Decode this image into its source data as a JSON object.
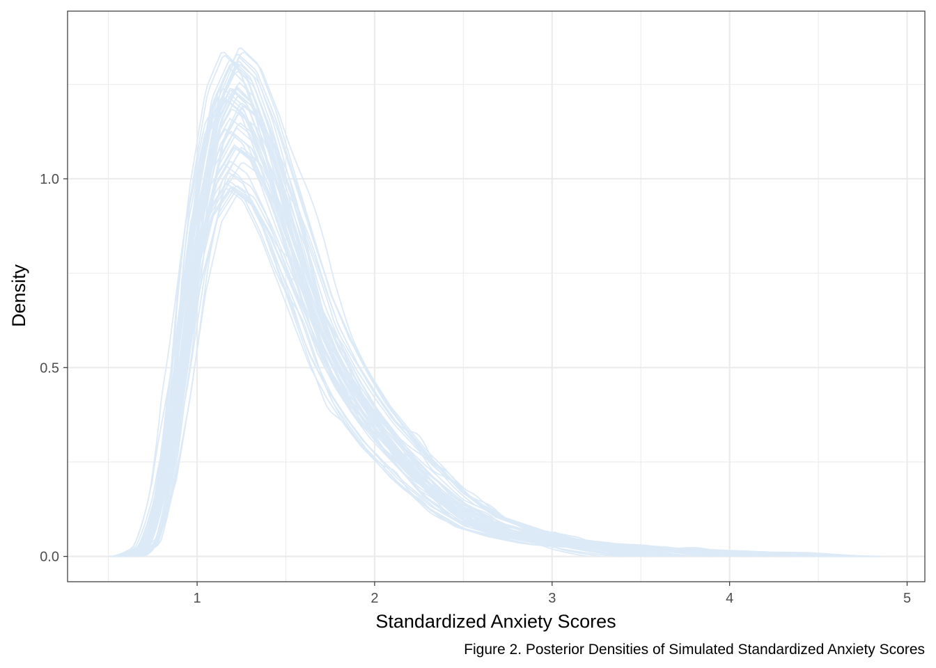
{
  "chart_data": {
    "type": "line",
    "title": "",
    "xlabel": "Standardized Anxiety Scores",
    "ylabel": "Density",
    "caption": "Figure 2. Posterior Densities of Simulated Standardized Anxiety Scores",
    "xlim": [
      0.27,
      5.1
    ],
    "ylim": [
      -0.067,
      1.444
    ],
    "x_ticks": [
      1,
      2,
      3,
      4,
      5
    ],
    "x_tick_labels": [
      "1",
      "2",
      "3",
      "4",
      "5"
    ],
    "x_minor_ticks": [
      0.5,
      1.5,
      2.5,
      3.5,
      4.5
    ],
    "y_ticks": [
      0.0,
      0.5,
      1.0
    ],
    "y_tick_labels": [
      "0.0",
      "0.5",
      "1.0"
    ],
    "y_minor_ticks": [
      0.25,
      0.75,
      1.25
    ],
    "grid": true,
    "legend": "none",
    "line_color": "#dce9f6",
    "series_count": 60,
    "reference_series": {
      "x": [
        0.5,
        0.7,
        0.8,
        0.9,
        1.0,
        1.1,
        1.2,
        1.3,
        1.4,
        1.5,
        1.6,
        1.7,
        1.8,
        1.9,
        2.0,
        2.2,
        2.4,
        2.6,
        2.8,
        3.0,
        3.2,
        3.5,
        3.8,
        4.1,
        4.4,
        4.7,
        4.9
      ],
      "y": [
        0.0,
        0.05,
        0.22,
        0.5,
        0.85,
        1.08,
        1.17,
        1.13,
        1.02,
        0.88,
        0.74,
        0.6,
        0.5,
        0.42,
        0.35,
        0.24,
        0.15,
        0.09,
        0.06,
        0.04,
        0.03,
        0.02,
        0.015,
        0.01,
        0.008,
        0.003,
        0.0
      ]
    }
  }
}
